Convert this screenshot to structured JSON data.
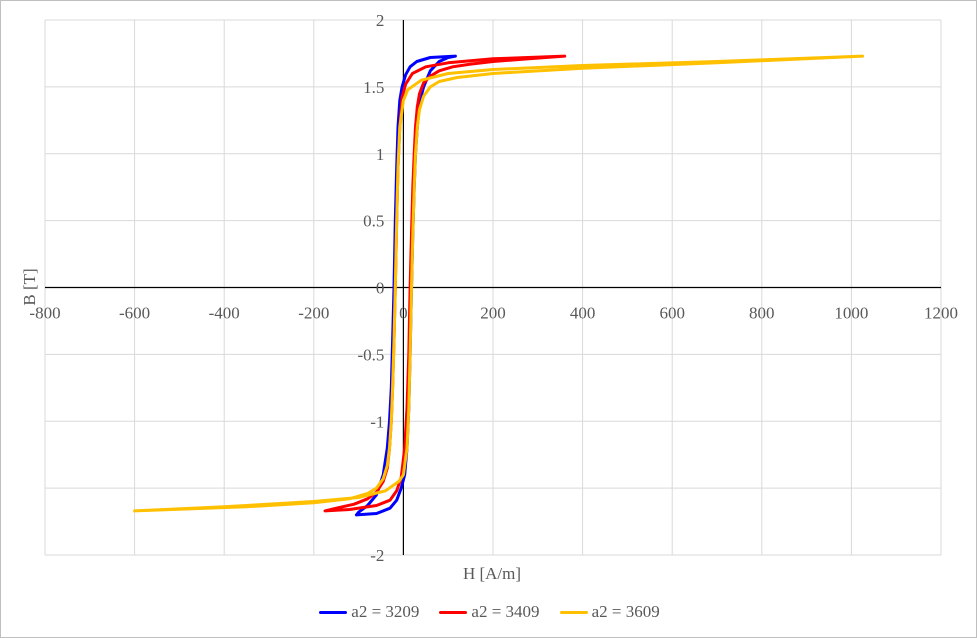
{
  "chart_data": {
    "type": "line",
    "title": "",
    "xlabel": "H [A/m]",
    "ylabel": "B [T]",
    "xlim": [
      -800,
      1200
    ],
    "ylim": [
      -2,
      2
    ],
    "x_ticks": [
      -800,
      -600,
      -400,
      -200,
      0,
      200,
      400,
      600,
      800,
      1000,
      1200
    ],
    "y_ticks": [
      -2,
      -1.5,
      -1,
      -0.5,
      0,
      0.5,
      1,
      1.5,
      2
    ],
    "x_tick_labels": [
      "-800",
      "-600",
      "-400",
      "-200",
      "0",
      "200",
      "400",
      "600",
      "800",
      "1000",
      "1200"
    ],
    "y_tick_labels": [
      "-2",
      "",
      "-1",
      "-0.5",
      "0",
      "0.5",
      "1",
      "1.5",
      "2"
    ],
    "grid": true,
    "legend_position": "bottom",
    "series": [
      {
        "name": "a2 = 3209",
        "color": "#0000ff",
        "x": [
          116,
          60,
          30,
          15,
          5,
          -3,
          -8,
          -12,
          -15,
          -18,
          -21,
          -24,
          -27,
          -31,
          -36,
          -45,
          -60,
          -80,
          -100,
          -105,
          -60,
          -30,
          -15,
          -5,
          3,
          8,
          12,
          15,
          18,
          21,
          24,
          27,
          31,
          36,
          45,
          60,
          80,
          100,
          116
        ],
        "y": [
          1.73,
          1.72,
          1.69,
          1.65,
          1.59,
          1.5,
          1.4,
          1.2,
          0.9,
          0.5,
          0.0,
          -0.4,
          -0.75,
          -1.0,
          -1.2,
          -1.4,
          -1.55,
          -1.63,
          -1.68,
          -1.7,
          -1.69,
          -1.65,
          -1.59,
          -1.5,
          -1.4,
          -1.2,
          -0.9,
          -0.5,
          0.0,
          0.4,
          0.75,
          1.0,
          1.2,
          1.38,
          1.5,
          1.62,
          1.69,
          1.72,
          1.73
        ]
      },
      {
        "name": "a2 = 3409",
        "color": "#ff0000",
        "x": [
          360,
          200,
          100,
          50,
          20,
          5,
          -3,
          -8,
          -12,
          -15,
          -18,
          -21,
          -24,
          -27,
          -31,
          -36,
          -45,
          -60,
          -80,
          -110,
          -150,
          -175,
          -120,
          -60,
          -30,
          -15,
          -5,
          3,
          8,
          12,
          15,
          18,
          21,
          24,
          27,
          31,
          36,
          45,
          60,
          80,
          110,
          150,
          200,
          280,
          360
        ],
        "y": [
          1.73,
          1.71,
          1.68,
          1.65,
          1.6,
          1.52,
          1.42,
          1.2,
          0.9,
          0.5,
          0.0,
          -0.4,
          -0.75,
          -1.0,
          -1.2,
          -1.35,
          -1.45,
          -1.53,
          -1.58,
          -1.62,
          -1.65,
          -1.67,
          -1.66,
          -1.63,
          -1.59,
          -1.52,
          -1.42,
          -1.2,
          -0.9,
          -0.5,
          0.0,
          0.4,
          0.75,
          1.0,
          1.2,
          1.35,
          1.45,
          1.53,
          1.58,
          1.62,
          1.65,
          1.67,
          1.69,
          1.71,
          1.73
        ]
      },
      {
        "name": "a2 = 3609",
        "color": "#ffc000",
        "x": [
          1025,
          700,
          400,
          200,
          100,
          40,
          10,
          0,
          -8,
          -12,
          -15,
          -18,
          -21,
          -24,
          -27,
          -31,
          -36,
          -45,
          -60,
          -80,
          -120,
          -200,
          -350,
          -600,
          -400,
          -200,
          -100,
          -40,
          -10,
          0,
          8,
          12,
          15,
          18,
          21,
          24,
          27,
          31,
          36,
          45,
          60,
          80,
          120,
          200,
          400,
          700,
          1025
        ],
        "y": [
          1.73,
          1.69,
          1.66,
          1.63,
          1.6,
          1.55,
          1.48,
          1.4,
          1.2,
          0.9,
          0.5,
          0.0,
          -0.4,
          -0.75,
          -1.0,
          -1.2,
          -1.33,
          -1.43,
          -1.5,
          -1.54,
          -1.58,
          -1.61,
          -1.64,
          -1.67,
          -1.64,
          -1.6,
          -1.57,
          -1.52,
          -1.45,
          -1.4,
          -1.2,
          -0.9,
          -0.5,
          0.0,
          0.4,
          0.75,
          1.0,
          1.2,
          1.33,
          1.43,
          1.5,
          1.54,
          1.57,
          1.6,
          1.64,
          1.68,
          1.73
        ]
      }
    ]
  }
}
